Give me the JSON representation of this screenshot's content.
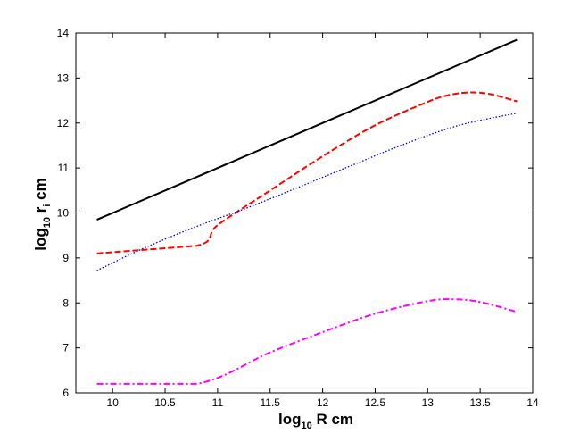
{
  "chart_data": {
    "type": "line",
    "title": "",
    "xlabel": {
      "base": "log",
      "sub": "10",
      "rest": " R cm"
    },
    "ylabel": {
      "base": "log",
      "sub": "10",
      "mid": " r",
      "sub2": "i",
      "rest": " cm"
    },
    "xlim": [
      9.65,
      14
    ],
    "ylim": [
      6,
      14
    ],
    "xticks": [
      10,
      10.5,
      11,
      11.5,
      12,
      12.5,
      13,
      13.5,
      14
    ],
    "yticks": [
      6,
      7,
      8,
      9,
      10,
      11,
      12,
      13,
      14
    ],
    "xtick_labels": [
      "10",
      "10.5",
      "11",
      "11.5",
      "12",
      "12.5",
      "13",
      "13.5",
      "14"
    ],
    "ytick_labels": [
      "6",
      "7",
      "8",
      "9",
      "10",
      "11",
      "12",
      "13",
      "14"
    ],
    "grid": false,
    "legend": false,
    "series": [
      {
        "color": "#000000",
        "style": "solid",
        "x": [
          9.85,
          13.85
        ],
        "y": [
          9.85,
          13.85
        ]
      },
      {
        "color": "#ff0000",
        "style": "dashed",
        "x": [
          9.85,
          10.8,
          11.0,
          11.5,
          12.0,
          12.5,
          13.0,
          13.2,
          13.4,
          13.6,
          13.85
        ],
        "y": [
          9.1,
          9.27,
          9.73,
          10.5,
          11.26,
          11.95,
          12.47,
          12.62,
          12.68,
          12.64,
          12.48
        ]
      },
      {
        "color": "#0000cc",
        "style": "dotted",
        "x": [
          9.85,
          10.3,
          10.8,
          11.3,
          11.8,
          12.3,
          12.8,
          13.3,
          13.85
        ],
        "y": [
          8.72,
          9.22,
          9.7,
          10.13,
          10.6,
          11.08,
          11.55,
          11.95,
          12.22
        ]
      },
      {
        "color": "#ff00ff",
        "style": "dashdot",
        "x": [
          9.85,
          10.8,
          11.5,
          12.0,
          12.5,
          13.0,
          13.25,
          13.5,
          13.85
        ],
        "y": [
          6.2,
          6.2,
          6.9,
          7.35,
          7.76,
          8.04,
          8.08,
          8.02,
          7.8
        ]
      }
    ]
  }
}
